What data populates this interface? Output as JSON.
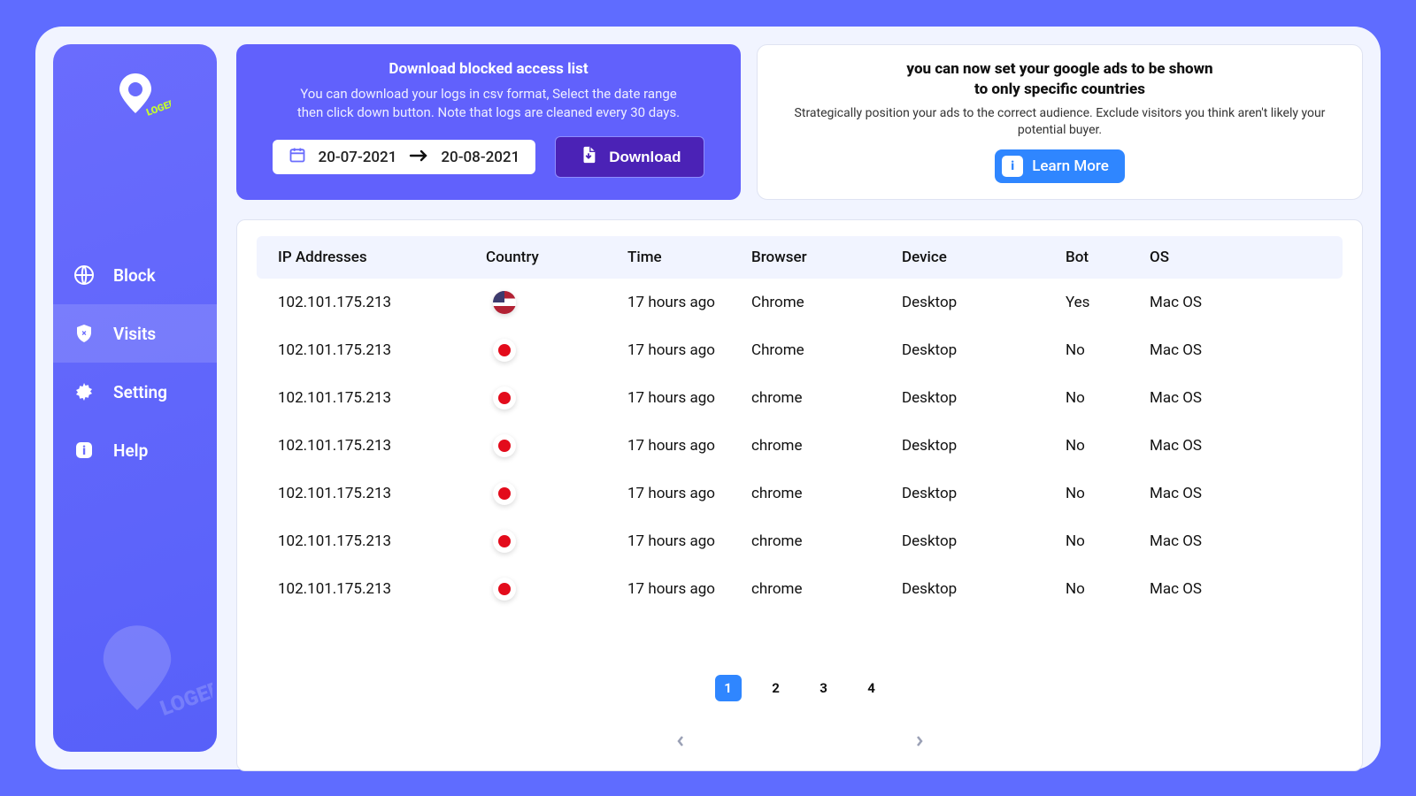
{
  "brand": {
    "name": "IP LOGED"
  },
  "colors": {
    "page_bg": "#5f6cff",
    "app_bg": "#f1f4ff",
    "sidebar_gradient_from": "#6a6cfd",
    "sidebar_gradient_to": "#5760f9",
    "download_card_bg": "#6161fc",
    "download_btn_bg": "#4b22b6",
    "learn_btn_bg": "#2f86ff",
    "table_header_bg": "#f1f4ff",
    "dot_red": "#e30b1b"
  },
  "sidebar": {
    "items": [
      {
        "id": "block",
        "label": "Block",
        "icon": "globe",
        "active": false
      },
      {
        "id": "visits",
        "label": "Visits",
        "icon": "shield",
        "active": true
      },
      {
        "id": "setting",
        "label": "Setting",
        "icon": "gear",
        "active": false
      },
      {
        "id": "help",
        "label": "Help",
        "icon": "info",
        "active": false
      }
    ]
  },
  "download_card": {
    "title": "Download blocked access list",
    "description": "You can download your logs in csv format, Select the date range then click down button. Note that logs are cleaned every 30 days.",
    "date_from": "20-07-2021",
    "date_to": "20-08-2021",
    "button_label": "Download"
  },
  "learn_card": {
    "title_line1": "you can now set your google ads to be shown",
    "title_line2": "to only specific countries",
    "description": "Strategically position your ads to the correct audience. Exclude visitors you think aren't likely your potential buyer.",
    "button_label": "Learn More"
  },
  "table": {
    "columns": [
      "IP Addresses",
      "Country",
      "Time",
      "Browser",
      "Device",
      "Bot",
      "OS"
    ],
    "rows": [
      {
        "ip": "102.101.175.213",
        "country": "us",
        "time": "17 hours ago",
        "browser": "Chrome",
        "device": "Desktop",
        "bot": "Yes",
        "os": "Mac OS"
      },
      {
        "ip": "102.101.175.213",
        "country": "red",
        "time": "17 hours ago",
        "browser": "Chrome",
        "device": "Desktop",
        "bot": "No",
        "os": "Mac OS"
      },
      {
        "ip": "102.101.175.213",
        "country": "red",
        "time": "17 hours ago",
        "browser": "chrome",
        "device": "Desktop",
        "bot": "No",
        "os": "Mac OS"
      },
      {
        "ip": "102.101.175.213",
        "country": "red",
        "time": "17 hours ago",
        "browser": "chrome",
        "device": "Desktop",
        "bot": "No",
        "os": "Mac OS"
      },
      {
        "ip": "102.101.175.213",
        "country": "red",
        "time": "17 hours ago",
        "browser": "chrome",
        "device": "Desktop",
        "bot": "No",
        "os": "Mac OS"
      },
      {
        "ip": "102.101.175.213",
        "country": "red",
        "time": "17 hours ago",
        "browser": "chrome",
        "device": "Desktop",
        "bot": "No",
        "os": "Mac OS"
      },
      {
        "ip": "102.101.175.213",
        "country": "red",
        "time": "17 hours ago",
        "browser": "chrome",
        "device": "Desktop",
        "bot": "No",
        "os": "Mac OS"
      }
    ]
  },
  "pagination": {
    "pages": [
      "1",
      "2",
      "3",
      "4"
    ],
    "active": "1"
  }
}
